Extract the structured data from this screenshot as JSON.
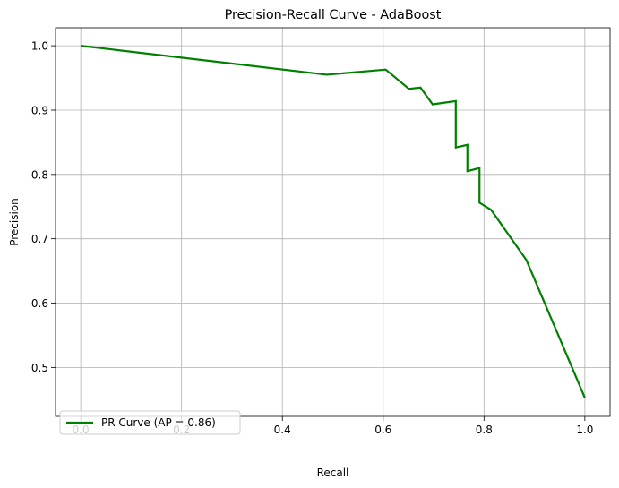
{
  "chart_data": {
    "type": "line",
    "title": "Precision-Recall Curve - AdaBoost",
    "xlabel": "Recall",
    "ylabel": "Precision",
    "xlim": [
      -0.05,
      1.05
    ],
    "ylim": [
      0.424,
      1.028
    ],
    "xticks": [
      0.0,
      0.2,
      0.4,
      0.6,
      0.8,
      1.0
    ],
    "xtick_labels": [
      "0.0",
      "0.2",
      "0.4",
      "0.6",
      "0.8",
      "1.0"
    ],
    "yticks": [
      0.5,
      0.6,
      0.7,
      0.8,
      0.9,
      1.0
    ],
    "ytick_labels": [
      "0.5",
      "0.6",
      "0.7",
      "0.8",
      "0.9",
      "1.0"
    ],
    "grid": true,
    "legend_position": "lower-left",
    "series": [
      {
        "name": "PR Curve (AP = 0.86)",
        "color": "#008000",
        "x": [
          0.0,
          0.488,
          0.605,
          0.651,
          0.674,
          0.698,
          0.744,
          0.744,
          0.767,
          0.767,
          0.791,
          0.791,
          0.814,
          0.884,
          1.0
        ],
        "y": [
          1.0,
          0.955,
          0.963,
          0.933,
          0.935,
          0.909,
          0.914,
          0.842,
          0.846,
          0.805,
          0.81,
          0.756,
          0.745,
          0.667,
          0.453
        ]
      }
    ]
  }
}
